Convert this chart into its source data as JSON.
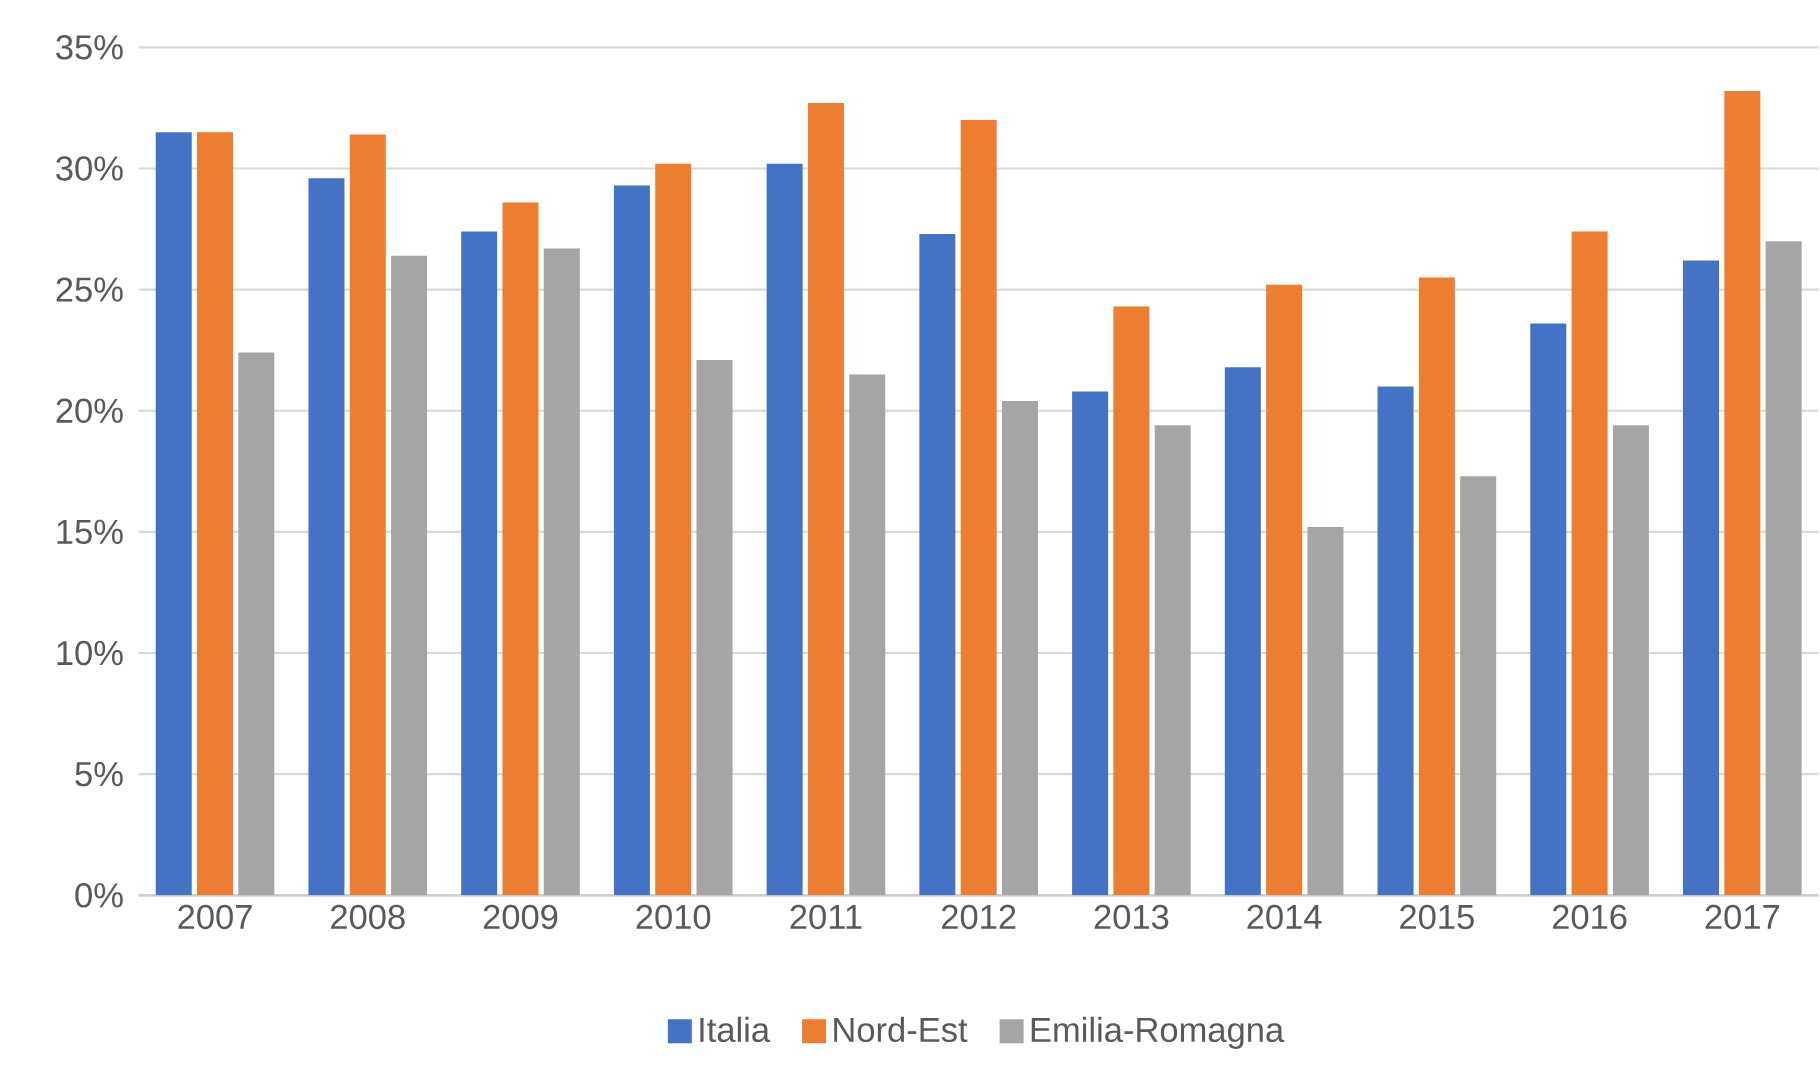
{
  "chart_data": {
    "type": "bar",
    "categories": [
      "2007",
      "2008",
      "2009",
      "2010",
      "2011",
      "2012",
      "2013",
      "2014",
      "2015",
      "2016",
      "2017"
    ],
    "series": [
      {
        "name": "Italia",
        "color": "#4472c4",
        "values": [
          31.5,
          29.6,
          27.4,
          29.3,
          30.2,
          27.3,
          20.8,
          21.8,
          21.0,
          23.6,
          26.2
        ]
      },
      {
        "name": "Nord-Est",
        "color": "#ed7d31",
        "values": [
          31.5,
          31.4,
          28.6,
          30.2,
          32.7,
          32.0,
          24.3,
          25.2,
          25.5,
          27.4,
          33.2
        ]
      },
      {
        "name": "Emilia-Romagna",
        "color": "#a5a5a5",
        "values": [
          22.4,
          26.4,
          26.7,
          22.1,
          21.5,
          20.4,
          19.4,
          15.2,
          17.3,
          19.4,
          27.0
        ]
      }
    ],
    "ylim": [
      0,
      35
    ],
    "yticks": [
      {
        "value": 0,
        "label": "0%"
      },
      {
        "value": 5,
        "label": "5%"
      },
      {
        "value": 10,
        "label": "10%"
      },
      {
        "value": 15,
        "label": "15%"
      },
      {
        "value": 20,
        "label": "20%"
      },
      {
        "value": 25,
        "label": "25%"
      },
      {
        "value": 30,
        "label": "30%"
      },
      {
        "value": 35,
        "label": "35%"
      }
    ],
    "grid": "y",
    "legend": "bottom"
  }
}
